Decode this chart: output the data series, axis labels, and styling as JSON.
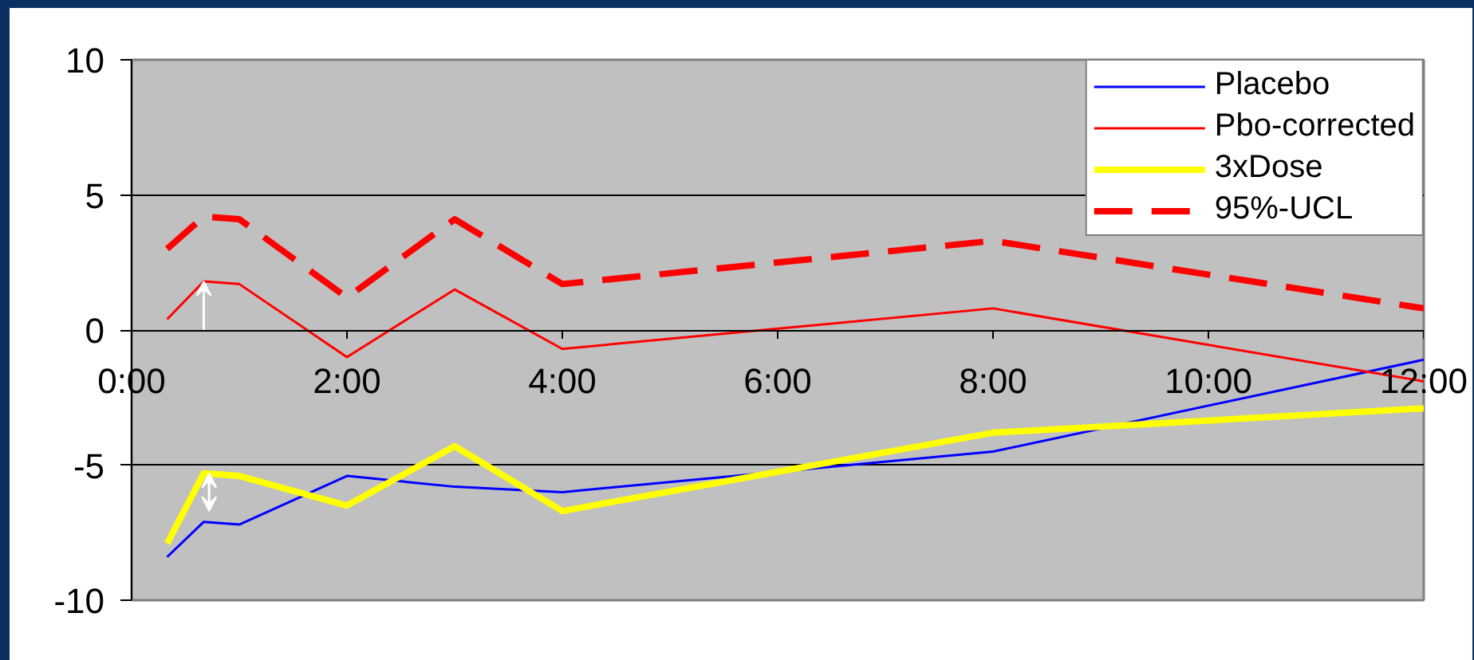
{
  "chart_data": {
    "type": "line",
    "x": [
      0.33,
      0.67,
      1,
      2,
      3,
      4,
      8,
      12
    ],
    "xlim": [
      0,
      12
    ],
    "xticks": [
      {
        "value": 0,
        "label": "0:00"
      },
      {
        "value": 2,
        "label": "2:00"
      },
      {
        "value": 4,
        "label": "4:00"
      },
      {
        "value": 6,
        "label": "6:00"
      },
      {
        "value": 8,
        "label": "8:00"
      },
      {
        "value": 10,
        "label": "10:00"
      },
      {
        "value": 12,
        "label": "12:00"
      }
    ],
    "ylim": [
      -10,
      10
    ],
    "yticks": [
      -10,
      -5,
      0,
      5,
      10
    ],
    "series": [
      {
        "name": "Placebo",
        "color": "#0000ff",
        "values": [
          -8.4,
          -7.1,
          -7.2,
          -5.4,
          -5.8,
          -6.0,
          -4.5,
          -1.1
        ]
      },
      {
        "name": "Pbo-corrected",
        "color": "#ff0000",
        "values": [
          0.4,
          1.8,
          1.7,
          -1.0,
          1.5,
          -0.7,
          0.8,
          -1.9
        ]
      },
      {
        "name": "3xDose",
        "color": "#ffff00",
        "values": [
          -7.9,
          -5.3,
          -5.4,
          -6.5,
          -4.3,
          -6.7,
          -3.8,
          -2.9
        ]
      },
      {
        "name": "95%-UCL",
        "color": "#ff0000",
        "line_style": "dashed",
        "values": [
          3.0,
          4.2,
          4.1,
          1.2,
          4.1,
          1.7,
          3.3,
          0.8
        ]
      }
    ],
    "grid": "y",
    "legend": "top right"
  }
}
